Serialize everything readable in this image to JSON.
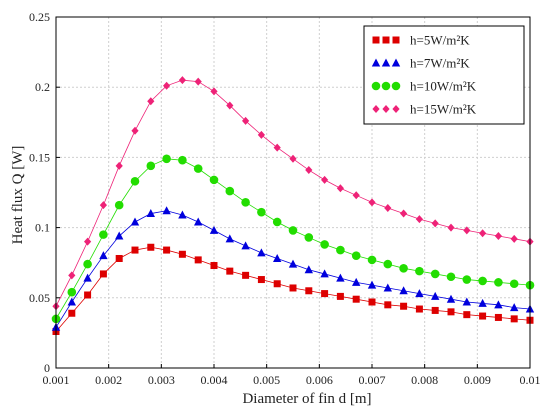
{
  "chart_data": {
    "type": "line",
    "xlabel": "Diameter of fin d [m]",
    "ylabel": "Heat flux Q [W]",
    "xlim": [
      0.001,
      0.01
    ],
    "ylim": [
      0,
      0.25
    ],
    "xticks": [
      "0.001",
      "0.002",
      "0.003",
      "0.004",
      "0.005",
      "0.006",
      "0.007",
      "0.008",
      "0.009",
      "0.01"
    ],
    "yticks": [
      "0",
      "0.05",
      "0.1",
      "0.15",
      "0.2",
      "0.25"
    ],
    "grid": true,
    "legend_position": "top-right",
    "x": [
      0.001,
      0.0013,
      0.0016,
      0.0019,
      0.0022,
      0.0025,
      0.0028,
      0.0031,
      0.0034,
      0.0037,
      0.004,
      0.0043,
      0.0046,
      0.0049,
      0.0052,
      0.0055,
      0.0058,
      0.0061,
      0.0064,
      0.0067,
      0.007,
      0.0073,
      0.0076,
      0.0079,
      0.0082,
      0.0085,
      0.0088,
      0.0091,
      0.0094,
      0.0097,
      0.01
    ],
    "series": [
      {
        "name": "h=5W/m²K",
        "marker": "square",
        "color": "#dd0000",
        "values": [
          0.026,
          0.039,
          0.052,
          0.067,
          0.078,
          0.084,
          0.086,
          0.084,
          0.081,
          0.077,
          0.073,
          0.069,
          0.066,
          0.063,
          0.06,
          0.057,
          0.055,
          0.053,
          0.051,
          0.049,
          0.047,
          0.045,
          0.044,
          0.042,
          0.041,
          0.04,
          0.038,
          0.037,
          0.036,
          0.035,
          0.034
        ]
      },
      {
        "name": "h=7W/m²K",
        "marker": "triangle",
        "color": "#0000dd",
        "values": [
          0.029,
          0.047,
          0.064,
          0.08,
          0.094,
          0.104,
          0.11,
          0.112,
          0.109,
          0.104,
          0.098,
          0.092,
          0.087,
          0.082,
          0.078,
          0.074,
          0.07,
          0.067,
          0.064,
          0.061,
          0.059,
          0.057,
          0.055,
          0.053,
          0.051,
          0.049,
          0.047,
          0.046,
          0.045,
          0.043,
          0.042
        ]
      },
      {
        "name": "h=10W/m²K",
        "marker": "circle",
        "color": "#22dd00",
        "values": [
          0.035,
          0.054,
          0.074,
          0.095,
          0.116,
          0.133,
          0.144,
          0.149,
          0.148,
          0.142,
          0.134,
          0.126,
          0.118,
          0.111,
          0.104,
          0.098,
          0.093,
          0.088,
          0.084,
          0.08,
          0.077,
          0.074,
          0.071,
          0.069,
          0.067,
          0.065,
          0.063,
          0.062,
          0.061,
          0.06,
          0.059
        ]
      },
      {
        "name": "h=15W/m²K",
        "marker": "diamond",
        "color": "#ee2277",
        "values": [
          0.044,
          0.066,
          0.09,
          0.116,
          0.144,
          0.169,
          0.19,
          0.201,
          0.205,
          0.204,
          0.197,
          0.187,
          0.176,
          0.166,
          0.157,
          0.149,
          0.141,
          0.134,
          0.128,
          0.123,
          0.118,
          0.114,
          0.11,
          0.106,
          0.103,
          0.1,
          0.098,
          0.096,
          0.094,
          0.092,
          0.09
        ]
      }
    ]
  }
}
